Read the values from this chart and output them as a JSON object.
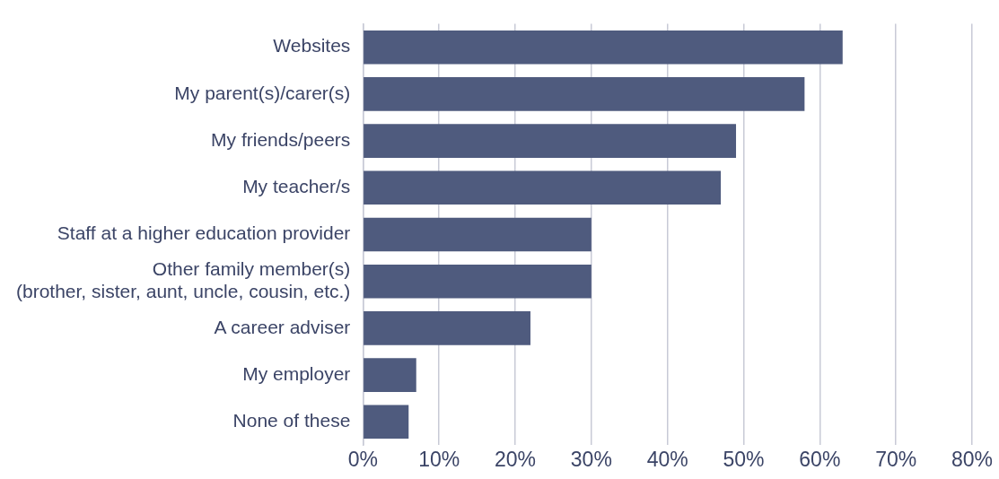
{
  "chart_data": {
    "type": "bar",
    "orientation": "horizontal",
    "categories": [
      "Websites",
      "My parent(s)/carer(s)",
      "My friends/peers",
      "My teacher/s",
      "Staff at a higher education provider",
      "Other family member(s)\n(brother, sister, aunt, uncle, cousin, etc.)",
      "A career adviser",
      "My employer",
      "None of these"
    ],
    "values": [
      63,
      58,
      49,
      47,
      30,
      30,
      22,
      7,
      6
    ],
    "color": "#4f5b7e",
    "xlim": [
      0,
      80
    ],
    "xticks": [
      {
        "value": 0,
        "label": "0%"
      },
      {
        "value": 10,
        "label": "10%"
      },
      {
        "value": 20,
        "label": "20%"
      },
      {
        "value": 30,
        "label": "30%"
      },
      {
        "value": 40,
        "label": "40%"
      },
      {
        "value": 50,
        "label": "50%"
      },
      {
        "value": 60,
        "label": "60%"
      },
      {
        "value": 70,
        "label": "70%"
      },
      {
        "value": 80,
        "label": "80%"
      }
    ],
    "grid": "x",
    "legend": false
  }
}
